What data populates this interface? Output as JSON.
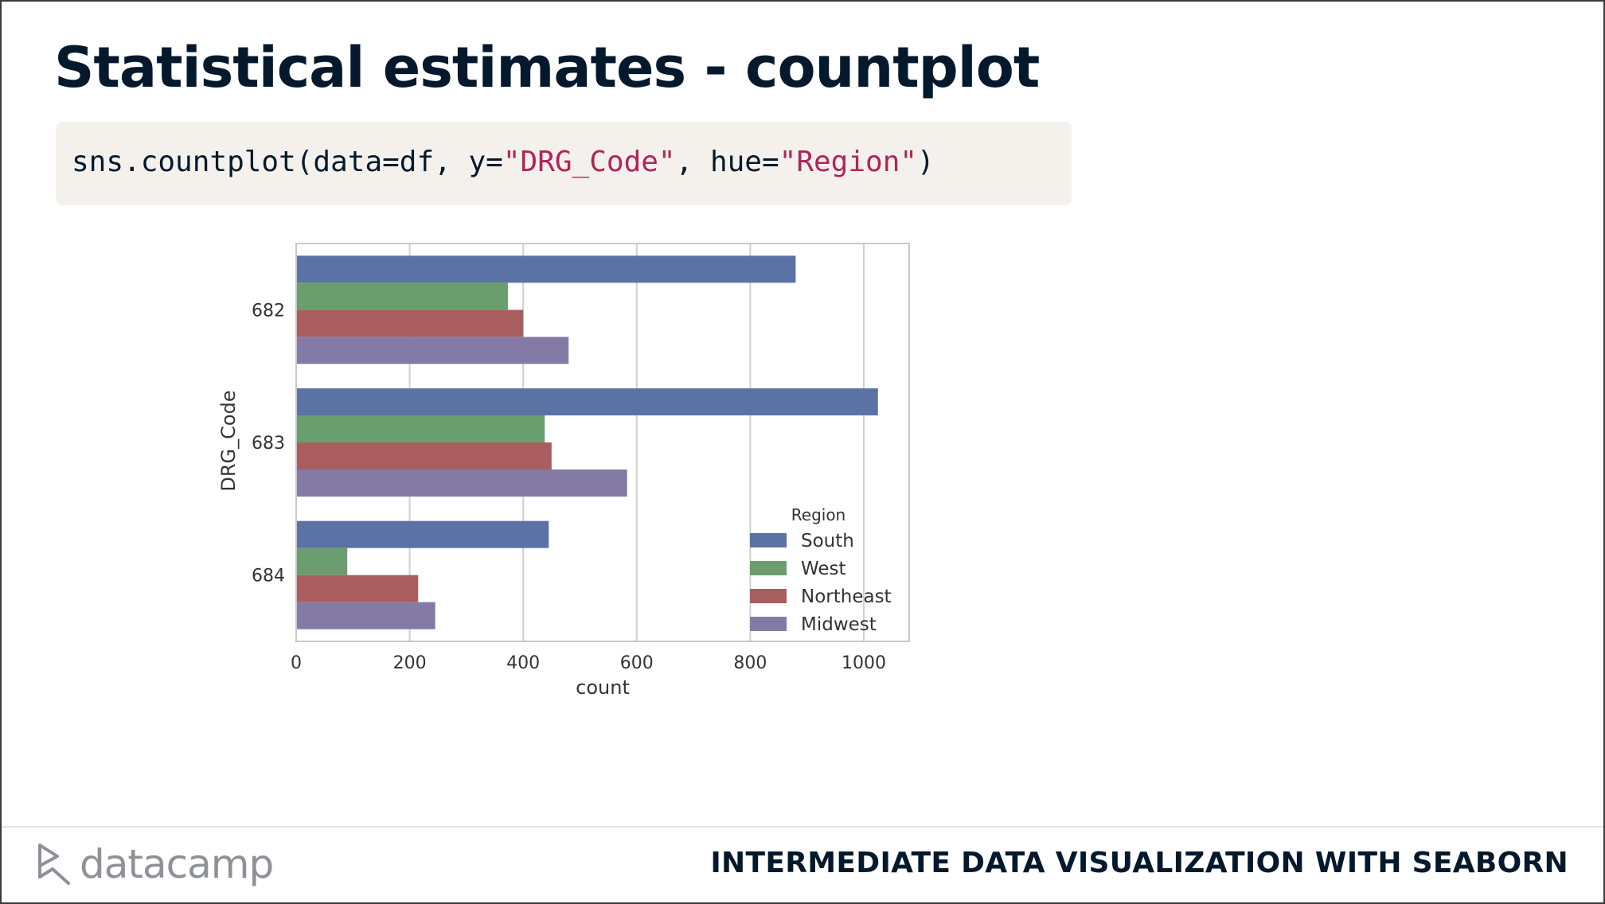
{
  "slide": {
    "title": "Statistical estimates - countplot",
    "code": {
      "prefix": "sns.countplot(data=df, y=",
      "arg1": "\"DRG_Code\"",
      "middle": ", hue=",
      "arg2": "\"Region\"",
      "suffix": ")"
    }
  },
  "footer": {
    "logo_text": "datacamp",
    "course_name": "INTERMEDIATE DATA VISUALIZATION WITH SEABORN"
  },
  "chart_data": {
    "type": "bar",
    "orientation": "horizontal",
    "categories": [
      "682",
      "683",
      "684"
    ],
    "series": [
      {
        "name": "South",
        "color": "#5a73a4",
        "values": [
          880,
          1025,
          445
        ]
      },
      {
        "name": "West",
        "color": "#6a9e6f",
        "values": [
          373,
          438,
          90
        ]
      },
      {
        "name": "Northeast",
        "color": "#a85e5f",
        "values": [
          400,
          450,
          215
        ]
      },
      {
        "name": "Midwest",
        "color": "#847aa6",
        "values": [
          480,
          583,
          245
        ]
      }
    ],
    "xlabel": "count",
    "ylabel": "DRG_Code",
    "xlim": [
      0,
      1080
    ],
    "xticks": [
      0,
      200,
      400,
      600,
      800,
      1000
    ],
    "grid": true,
    "legend_title": "Region",
    "legend_position": "lower-right"
  }
}
